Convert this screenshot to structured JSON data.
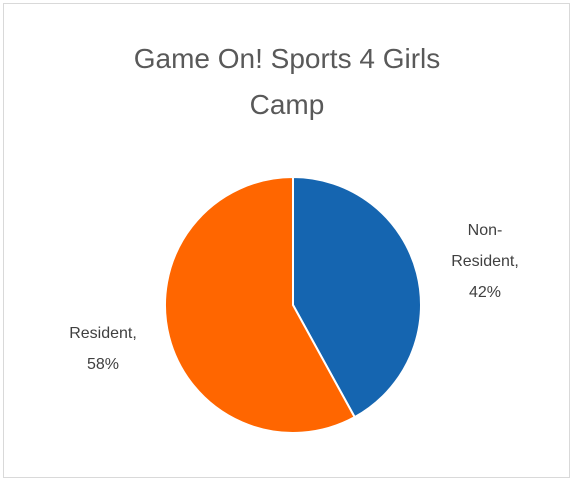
{
  "chart_data": {
    "type": "pie",
    "title": "Game On! Sports 4 Girls Camp",
    "categories": [
      "Non-Resident",
      "Resident"
    ],
    "values": [
      42,
      58
    ],
    "value_labels": [
      "Non-Resident, 42%",
      "Resident, 58%"
    ],
    "colors": [
      "#1565b0",
      "#ff6600"
    ]
  }
}
